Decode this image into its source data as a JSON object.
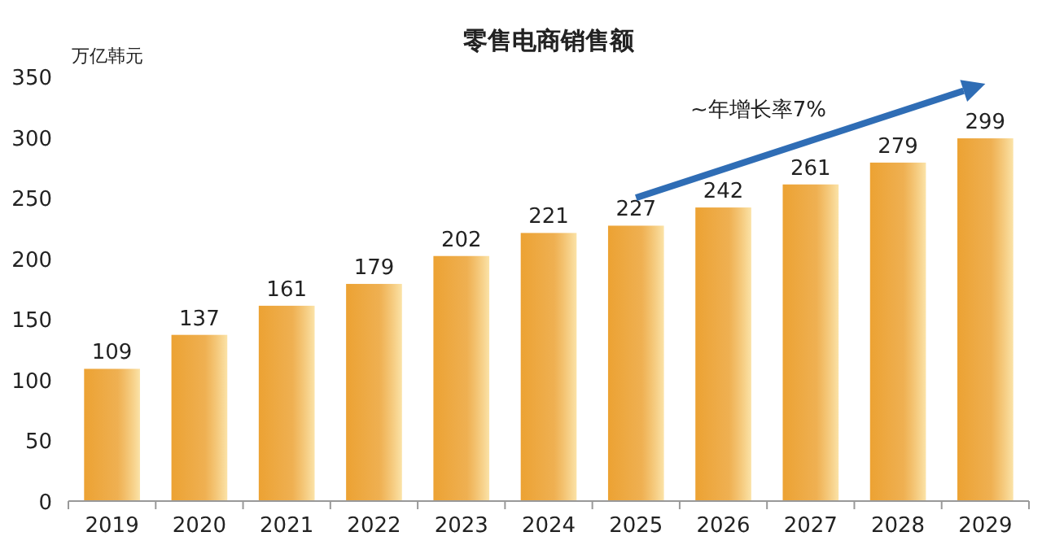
{
  "chart_data": {
    "type": "bar",
    "title": "零售电商销售额",
    "ylabel": "万亿韩元",
    "categories": [
      "2019",
      "2020",
      "2021",
      "2022",
      "2023",
      "2024",
      "2025",
      "2026",
      "2027",
      "2028",
      "2029"
    ],
    "values": [
      109,
      137,
      161,
      179,
      202,
      221,
      227,
      242,
      261,
      279,
      299
    ],
    "color": "#eca233",
    "ylim": [
      0,
      350
    ],
    "yticks": [
      0,
      50,
      100,
      150,
      200,
      250,
      300,
      350
    ],
    "data_labels": true,
    "grid": false,
    "annotations": [
      "~年增长率7%"
    ]
  }
}
